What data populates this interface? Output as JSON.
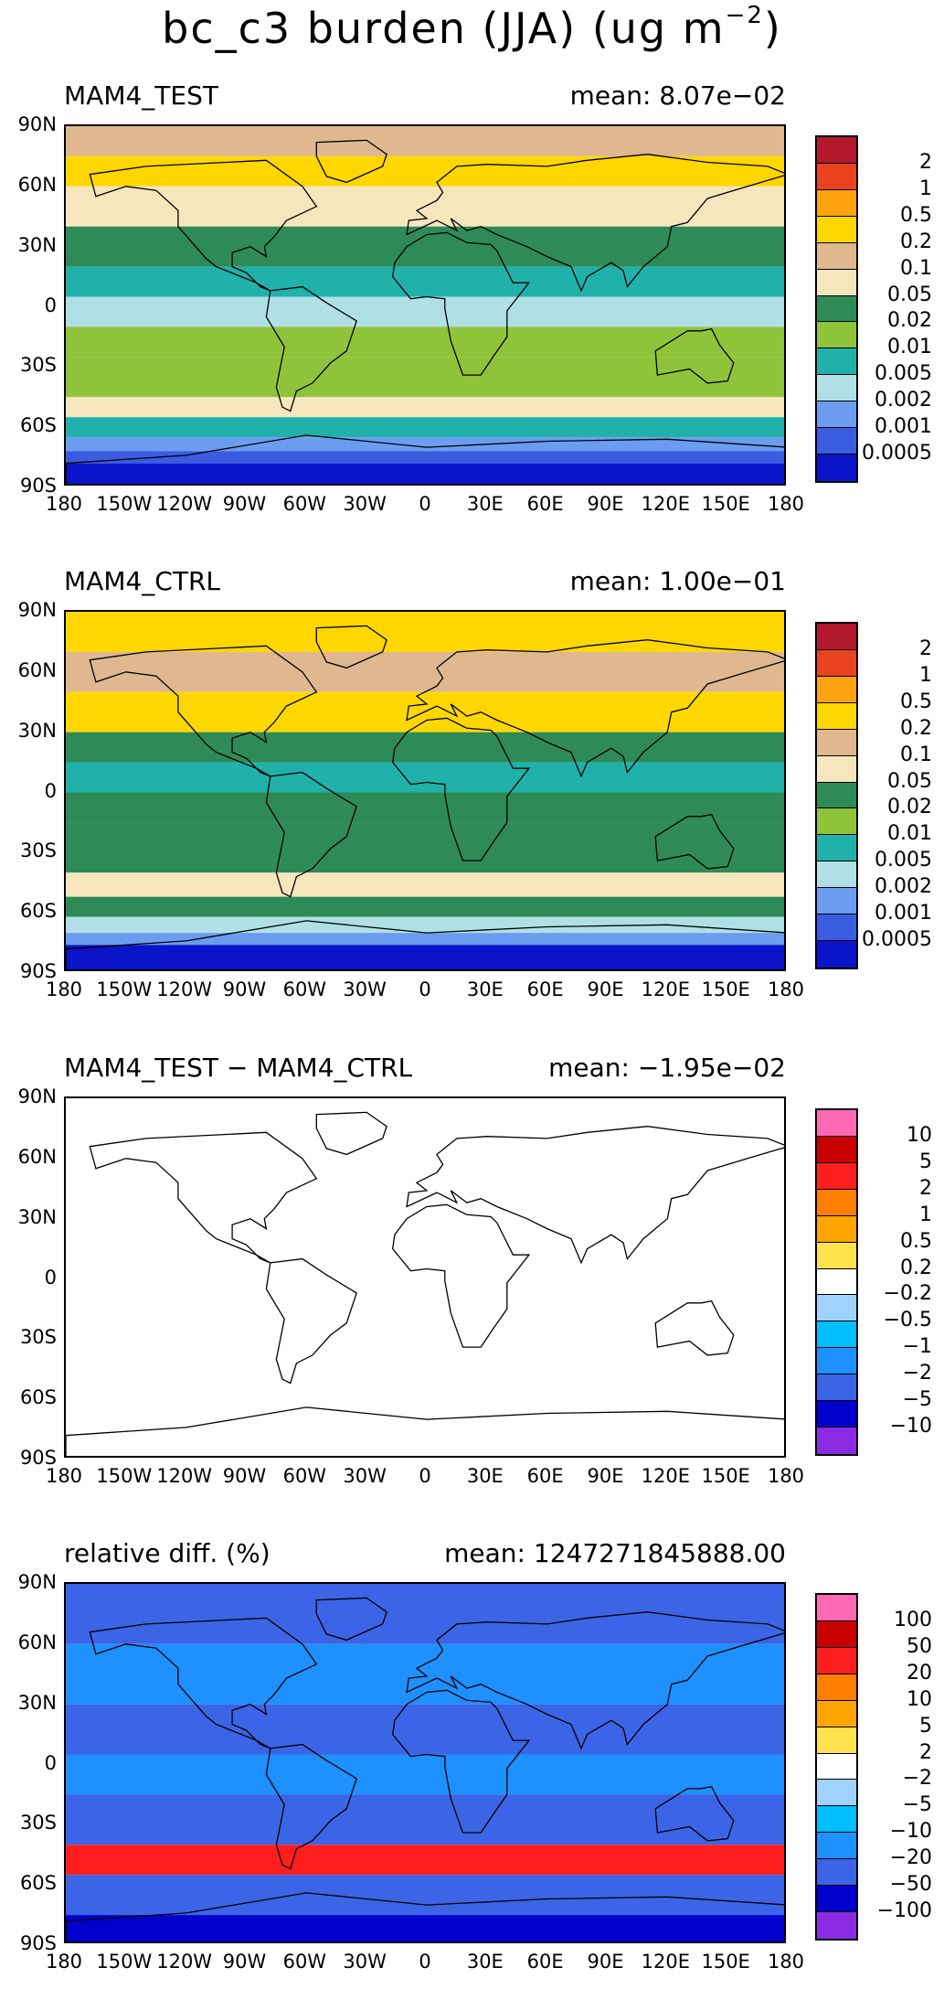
{
  "title": {
    "main": "bc_c3 burden (JJA) (ug m",
    "exp": "−2",
    "close": ")"
  },
  "axes": {
    "lat_ticks": [
      "90N",
      "60N",
      "30N",
      "0",
      "30S",
      "60S",
      "90S"
    ],
    "lon_ticks": [
      "180",
      "150W",
      "120W",
      "90W",
      "60W",
      "30W",
      "0",
      "30E",
      "60E",
      "90E",
      "120E",
      "150E",
      "180"
    ]
  },
  "colors": {
    "land_outline": "#000000"
  },
  "chart_data": [
    {
      "type": "heatmap",
      "title": "MAM4_TEST",
      "mean_text": "mean: 8.07e−02",
      "xlabel": "",
      "ylabel": "",
      "xlim": [
        -180,
        180
      ],
      "ylim": [
        -90,
        90
      ],
      "colorbar_labels": [
        "2",
        "1",
        "0.5",
        "0.2",
        "0.1",
        "0.05",
        "0.02",
        "0.01",
        "0.005",
        "0.002",
        "0.001",
        "0.0005"
      ],
      "colorbar_colors": [
        "#b2182b",
        "#e8421e",
        "#fda30f",
        "#ffd700",
        "#dfb88f",
        "#f6e6be",
        "#2e8b57",
        "#8fc43a",
        "#20b2aa",
        "#b0e0e6",
        "#6c9cf0",
        "#3a5ce0",
        "#0a14c8"
      ],
      "lat_bands": [
        {
          "lat": [
            75,
            90
          ],
          "color": "#dfb88f"
        },
        {
          "lat": [
            60,
            75
          ],
          "color": "#ffd700"
        },
        {
          "lat": [
            40,
            60
          ],
          "color": "#f6e6be"
        },
        {
          "lat": [
            20,
            40
          ],
          "color": "#2e8b57"
        },
        {
          "lat": [
            5,
            20
          ],
          "color": "#20b2aa"
        },
        {
          "lat": [
            -10,
            5
          ],
          "color": "#b0e0e6"
        },
        {
          "lat": [
            -25,
            -10
          ],
          "color": "#8fc43a"
        },
        {
          "lat": [
            -45,
            -25
          ],
          "color": "#8fc43a"
        },
        {
          "lat": [
            -55,
            -45
          ],
          "color": "#f6e6be"
        },
        {
          "lat": [
            -65,
            -55
          ],
          "color": "#20b2aa"
        },
        {
          "lat": [
            -72,
            -65
          ],
          "color": "#6c9cf0"
        },
        {
          "lat": [
            -78,
            -72
          ],
          "color": "#3a5ce0"
        },
        {
          "lat": [
            -90,
            -78
          ],
          "color": "#0a14c8"
        }
      ]
    },
    {
      "type": "heatmap",
      "title": "MAM4_CTRL",
      "mean_text": "mean: 1.00e−01",
      "xlabel": "",
      "ylabel": "",
      "xlim": [
        -180,
        180
      ],
      "ylim": [
        -90,
        90
      ],
      "colorbar_labels": [
        "2",
        "1",
        "0.5",
        "0.2",
        "0.1",
        "0.05",
        "0.02",
        "0.01",
        "0.005",
        "0.002",
        "0.001",
        "0.0005"
      ],
      "colorbar_colors": [
        "#b2182b",
        "#e8421e",
        "#fda30f",
        "#ffd700",
        "#dfb88f",
        "#f6e6be",
        "#2e8b57",
        "#8fc43a",
        "#20b2aa",
        "#b0e0e6",
        "#6c9cf0",
        "#3a5ce0",
        "#0a14c8"
      ],
      "lat_bands": [
        {
          "lat": [
            70,
            90
          ],
          "color": "#ffd700"
        },
        {
          "lat": [
            50,
            70
          ],
          "color": "#dfb88f"
        },
        {
          "lat": [
            30,
            50
          ],
          "color": "#ffd700"
        },
        {
          "lat": [
            15,
            30
          ],
          "color": "#2e8b57"
        },
        {
          "lat": [
            0,
            15
          ],
          "color": "#20b2aa"
        },
        {
          "lat": [
            -15,
            0
          ],
          "color": "#2e8b57"
        },
        {
          "lat": [
            -40,
            -15
          ],
          "color": "#2e8b57"
        },
        {
          "lat": [
            -52,
            -40
          ],
          "color": "#f6e6be"
        },
        {
          "lat": [
            -62,
            -52
          ],
          "color": "#2e8b57"
        },
        {
          "lat": [
            -70,
            -62
          ],
          "color": "#b0e0e6"
        },
        {
          "lat": [
            -76,
            -70
          ],
          "color": "#6c9cf0"
        },
        {
          "lat": [
            -90,
            -76
          ],
          "color": "#0a14c8"
        }
      ]
    },
    {
      "type": "heatmap",
      "title": "MAM4_TEST − MAM4_CTRL",
      "mean_text": "mean: −1.95e−02",
      "xlabel": "",
      "ylabel": "",
      "xlim": [
        -180,
        180
      ],
      "ylim": [
        -90,
        90
      ],
      "colorbar_labels": [
        "10",
        "5",
        "2",
        "1",
        "0.5",
        "0.2",
        "−0.2",
        "−0.5",
        "−1",
        "−2",
        "−5",
        "−10"
      ],
      "colorbar_colors": [
        "#ff69b4",
        "#c80000",
        "#ff1e1e",
        "#ff7f00",
        "#ffa500",
        "#ffe24d",
        "#ffffff",
        "#a0d2ff",
        "#00bfff",
        "#1e90ff",
        "#3c64e6",
        "#0000cd",
        "#8a2be2"
      ],
      "lat_bands": [
        {
          "lat": [
            -90,
            90
          ],
          "color": "#ffffff"
        }
      ]
    },
    {
      "type": "heatmap",
      "title": "relative diff. (%)",
      "mean_text": "mean: 1247271845888.00",
      "xlabel": "",
      "ylabel": "",
      "xlim": [
        -180,
        180
      ],
      "ylim": [
        -90,
        90
      ],
      "colorbar_labels": [
        "100",
        "50",
        "20",
        "10",
        "5",
        "2",
        "−2",
        "−5",
        "−10",
        "−20",
        "−50",
        "−100"
      ],
      "colorbar_colors": [
        "#ff69b4",
        "#c80000",
        "#ff1e1e",
        "#ff7f00",
        "#ffa500",
        "#ffe24d",
        "#ffffff",
        "#a0d2ff",
        "#00bfff",
        "#1e90ff",
        "#3c64e6",
        "#0000cd",
        "#8a2be2"
      ],
      "lat_bands": [
        {
          "lat": [
            60,
            90
          ],
          "color": "#3c64e6"
        },
        {
          "lat": [
            30,
            60
          ],
          "color": "#1e90ff"
        },
        {
          "lat": [
            5,
            30
          ],
          "color": "#3c64e6"
        },
        {
          "lat": [
            -15,
            5
          ],
          "color": "#1e90ff"
        },
        {
          "lat": [
            -40,
            -15
          ],
          "color": "#3c64e6"
        },
        {
          "lat": [
            -55,
            -40
          ],
          "color": "#ff1e1e"
        },
        {
          "lat": [
            -75,
            -55
          ],
          "color": "#3c64e6"
        },
        {
          "lat": [
            -90,
            -75
          ],
          "color": "#0000cd"
        }
      ]
    }
  ]
}
